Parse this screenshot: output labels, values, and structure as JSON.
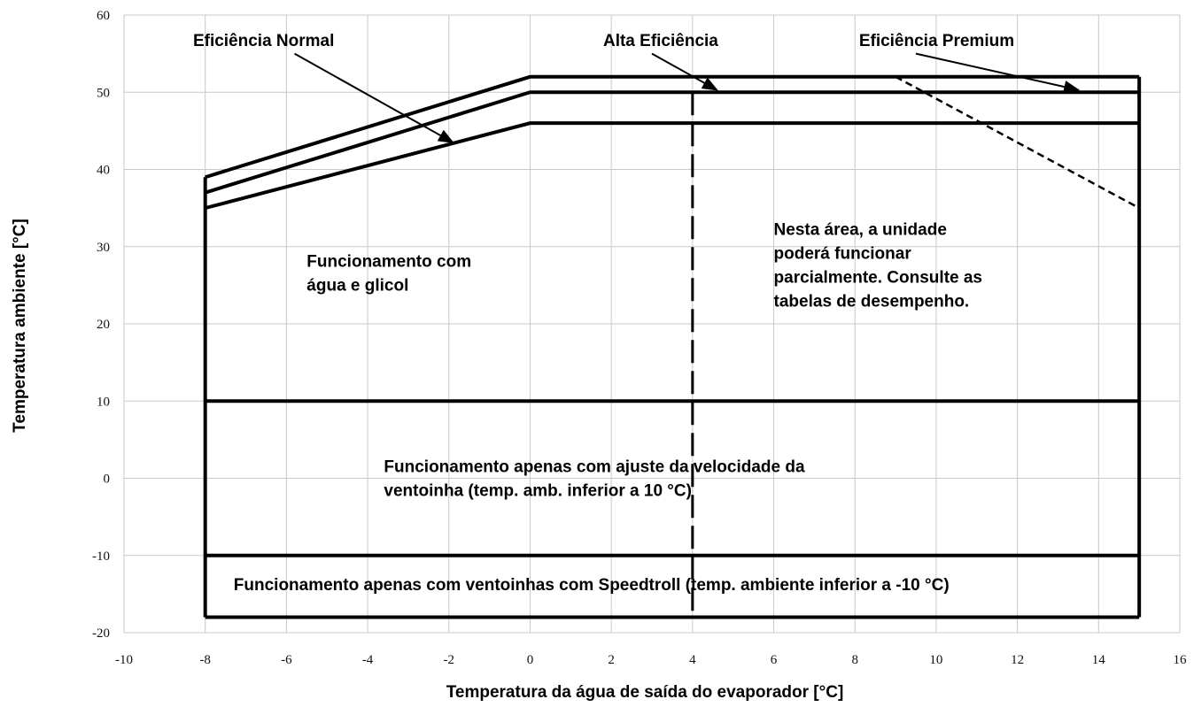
{
  "chart_data": {
    "type": "line",
    "title": "",
    "xlabel": "Temperatura da água de saída do evaporador [°C]",
    "ylabel": "Temperatura ambiente [°C]",
    "xlim": [
      -10,
      16
    ],
    "ylim": [
      -20,
      60
    ],
    "x_ticks": [
      -10,
      -8,
      -6,
      -4,
      -2,
      0,
      2,
      4,
      6,
      8,
      10,
      12,
      14,
      16
    ],
    "y_ticks": [
      -20,
      -10,
      0,
      10,
      20,
      30,
      40,
      50,
      60
    ],
    "grid": true,
    "series": [
      {
        "x": [
          -8,
          0,
          15
        ],
        "y": [
          39,
          52,
          52
        ]
      },
      {
        "x": [
          -8,
          0,
          15
        ],
        "y": [
          37,
          50,
          50
        ]
      },
      {
        "x": [
          -8,
          0,
          15
        ],
        "y": [
          35,
          46,
          46
        ]
      }
    ],
    "envelope": {
      "x_min": -8,
      "x_max": 15,
      "y_bottom": -18,
      "left_top": 39,
      "right_top": 52
    },
    "horizontal_lines": [
      10,
      -10
    ],
    "dashed_vertical": {
      "x": 4,
      "y_from": -18,
      "y_to": 50
    },
    "dotted_line": {
      "x": [
        9,
        15
      ],
      "y": [
        52,
        35
      ]
    },
    "annotations": [
      {
        "id": "normal",
        "lines": [
          "Eficiência Normal"
        ],
        "x": -8.3,
        "y": 56,
        "arrow_to": [
          -1.9,
          43.5
        ]
      },
      {
        "id": "alta",
        "lines": [
          "Alta Eficiência"
        ],
        "x": 1.8,
        "y": 56,
        "arrow_to": [
          4.6,
          50.3
        ]
      },
      {
        "id": "premium",
        "lines": [
          "Eficiência Premium"
        ],
        "x": 8.1,
        "y": 56,
        "arrow_to": [
          13.5,
          50.3
        ]
      },
      {
        "id": "glicol",
        "lines": [
          "Funcionamento com",
          "água e glicol"
        ],
        "x": -5.5,
        "y": 27.4
      },
      {
        "id": "parcial",
        "lines": [
          "Nesta área, a unidade",
          "poderá funcionar",
          "parcialmente. Consulte as",
          "tabelas de desempenho."
        ],
        "x": 6,
        "y": 31.5
      },
      {
        "id": "ventoinha",
        "lines": [
          "Funcionamento apenas com ajuste da velocidade da",
          "ventoinha (temp. amb. inferior a 10 °C)"
        ],
        "x": -3.6,
        "y": 0.8
      },
      {
        "id": "speedtroll",
        "lines": [
          "Funcionamento apenas com ventoinhas com Speedtroll (temp. ambiente inferior a -10 °C)"
        ],
        "x": -7.3,
        "y": -14.5
      }
    ]
  }
}
